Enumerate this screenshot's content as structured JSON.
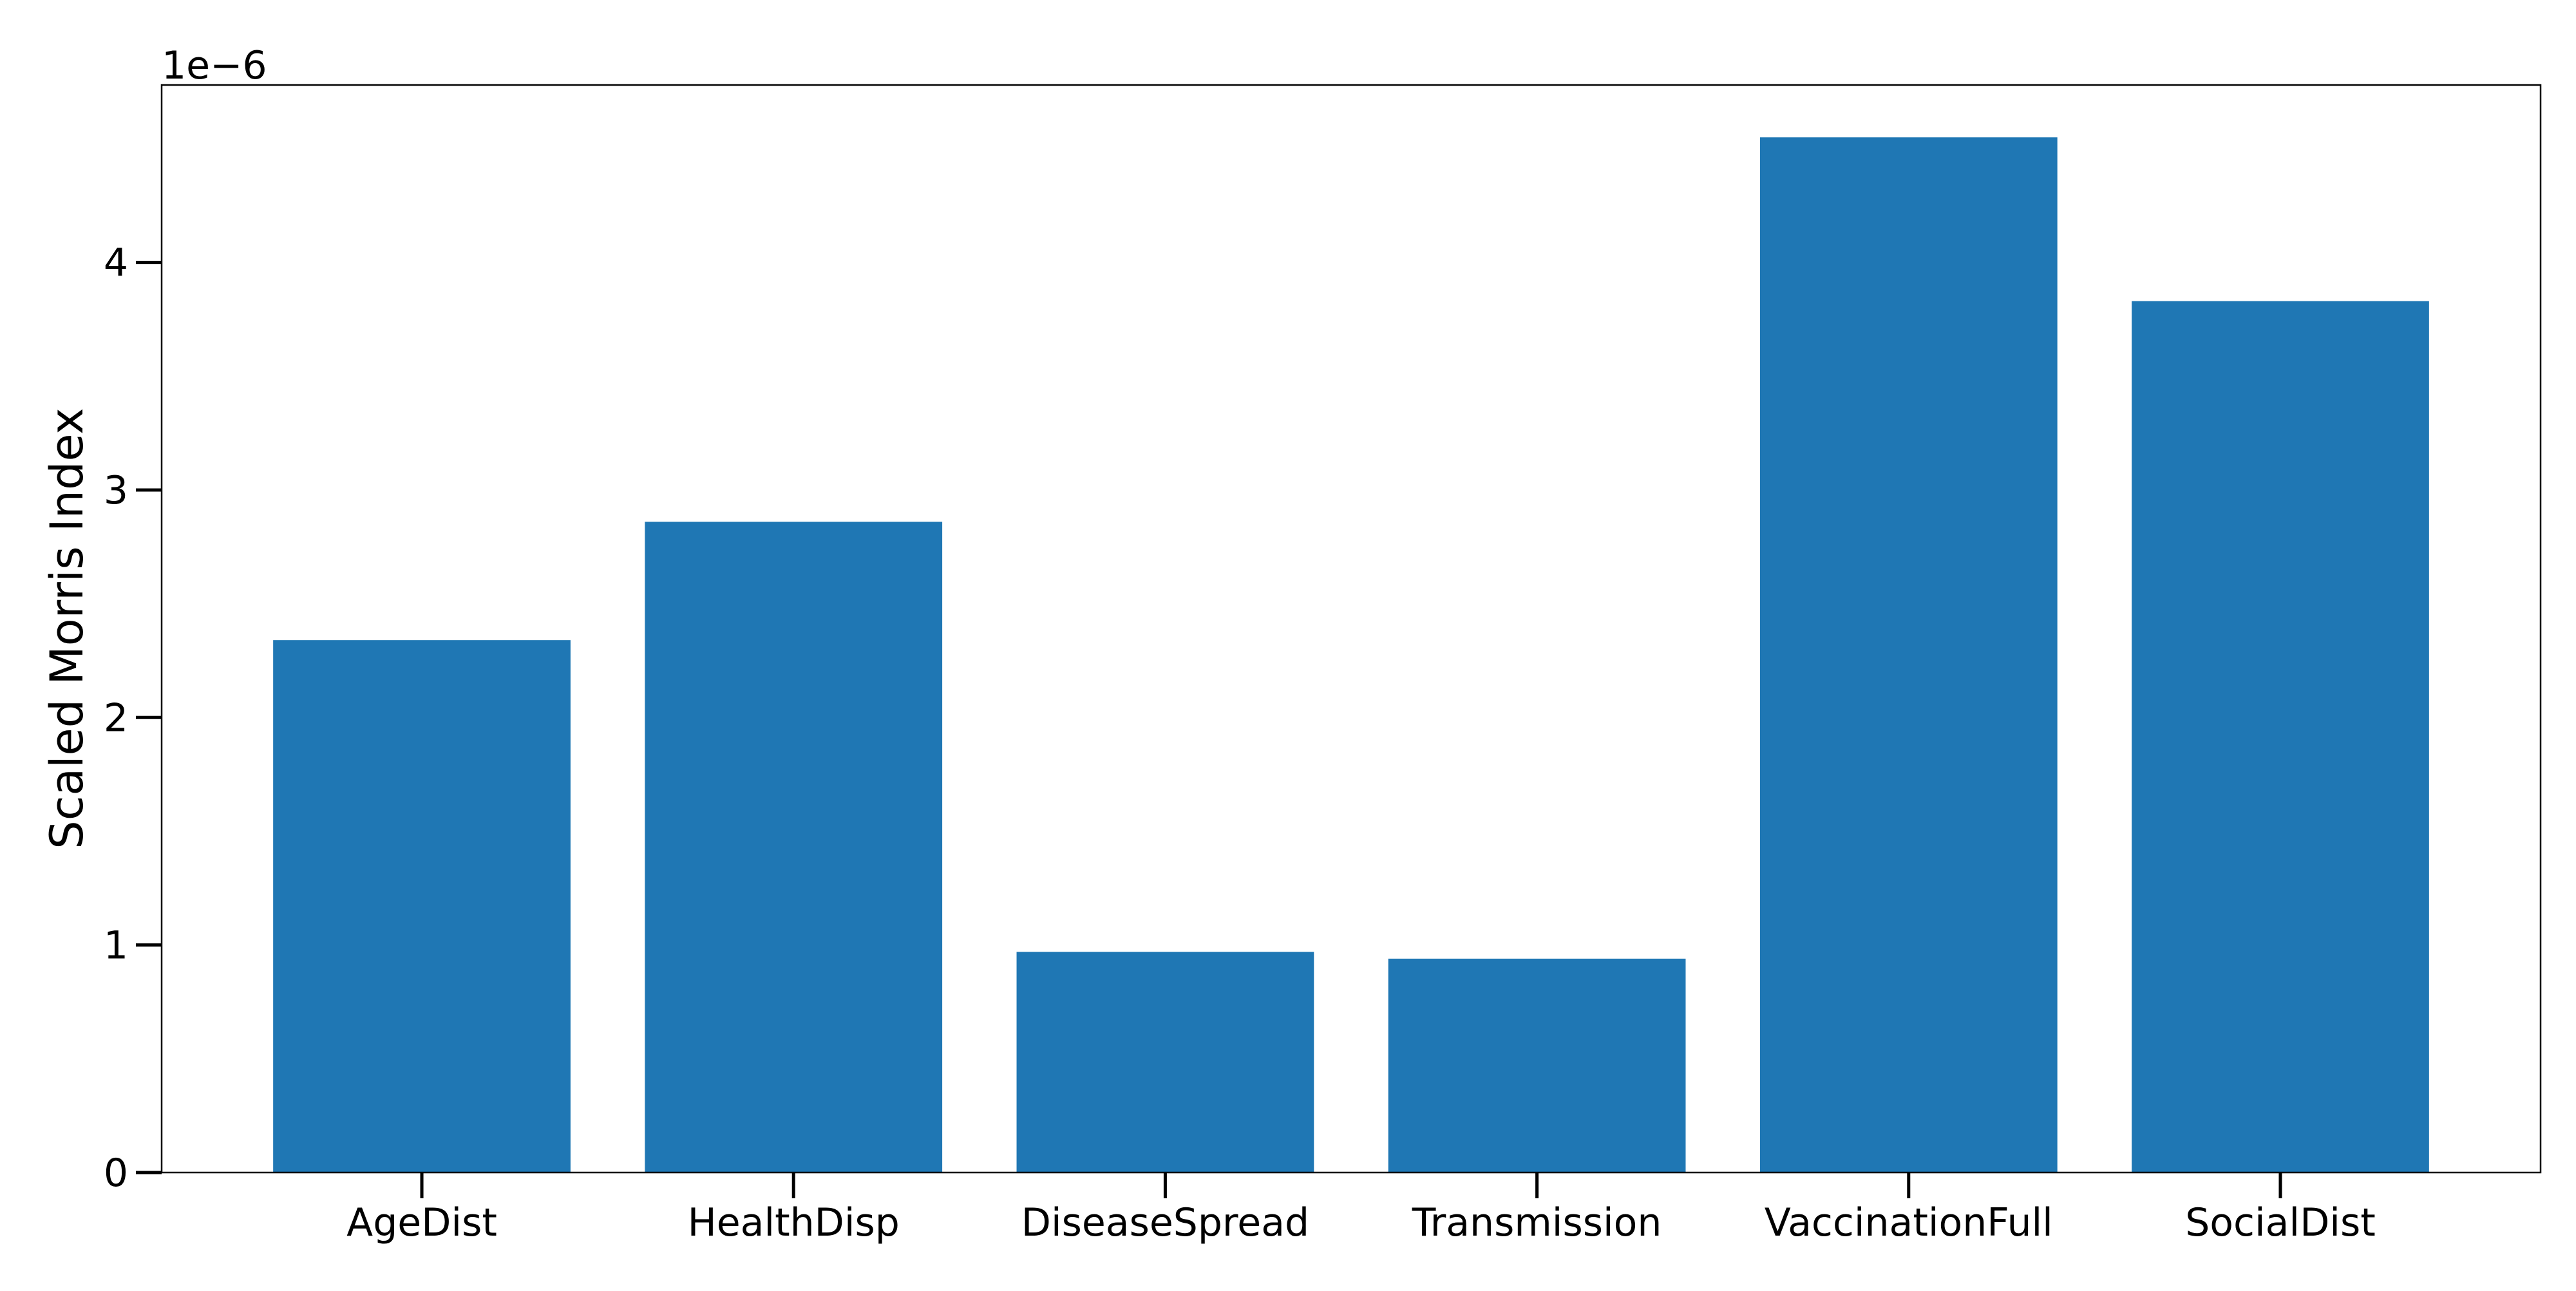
{
  "chart_data": {
    "type": "bar",
    "categories": [
      "AgeDist",
      "HealthDisp",
      "DiseaseSpread",
      "Transmission",
      "VaccinationFull",
      "SocialDist"
    ],
    "values": [
      2.34e-06,
      2.86e-06,
      9.7e-07,
      9.4e-07,
      4.55e-06,
      3.83e-06
    ],
    "title": "",
    "xlabel": "",
    "ylabel": "Scaled Morris Index",
    "y_offset_label": "1e−6",
    "ylim": [
      0,
      4.78e-06
    ],
    "yticks": [
      0,
      1e-06,
      2e-06,
      3e-06,
      4e-06
    ],
    "ytick_labels": [
      "0",
      "1",
      "2",
      "3",
      "4"
    ],
    "bar_color": "#1f77b4",
    "grid": false,
    "legend": "none"
  }
}
